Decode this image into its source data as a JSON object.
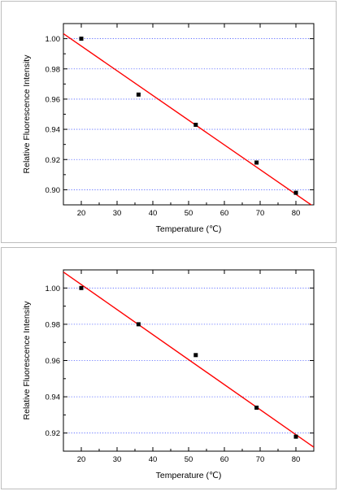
{
  "chart_data": [
    {
      "type": "scatter",
      "title": "",
      "xlabel": "Temperature (℃)",
      "ylabel": "Relative Fluorescence Intensity",
      "xlim": [
        15,
        85
      ],
      "ylim": [
        0.89,
        1.01
      ],
      "xticks": [
        20,
        30,
        40,
        50,
        60,
        70,
        80
      ],
      "yticks": [
        0.9,
        0.92,
        0.94,
        0.96,
        0.98,
        1.0
      ],
      "grid": "horizontal dotted",
      "series": [
        {
          "x": [
            20,
            36,
            52,
            69,
            80
          ],
          "y": [
            1.0,
            0.963,
            0.943,
            0.918,
            0.898
          ],
          "marker": "square",
          "color": "#000000"
        }
      ],
      "fit": {
        "type": "linear",
        "x": [
          15,
          85
        ],
        "y": [
          1.0033,
          0.8888
        ],
        "color": "#ff0000"
      }
    },
    {
      "type": "scatter",
      "title": "",
      "xlabel": "Temperature (℃)",
      "ylabel": "Relative Fluorescence Intensity",
      "xlim": [
        15,
        85
      ],
      "ylim": [
        0.91,
        1.01
      ],
      "xticks": [
        20,
        30,
        40,
        50,
        60,
        70,
        80
      ],
      "yticks": [
        0.92,
        0.94,
        0.96,
        0.98,
        1.0
      ],
      "grid": "horizontal dotted",
      "series": [
        {
          "x": [
            20,
            36,
            52,
            69,
            80
          ],
          "y": [
            1.0,
            0.98,
            0.963,
            0.934,
            0.918
          ],
          "marker": "square",
          "color": "#000000"
        }
      ],
      "fit": {
        "type": "linear",
        "x": [
          15,
          85
        ],
        "y": [
          1.0088,
          0.9122
        ],
        "color": "#ff0000"
      }
    }
  ]
}
